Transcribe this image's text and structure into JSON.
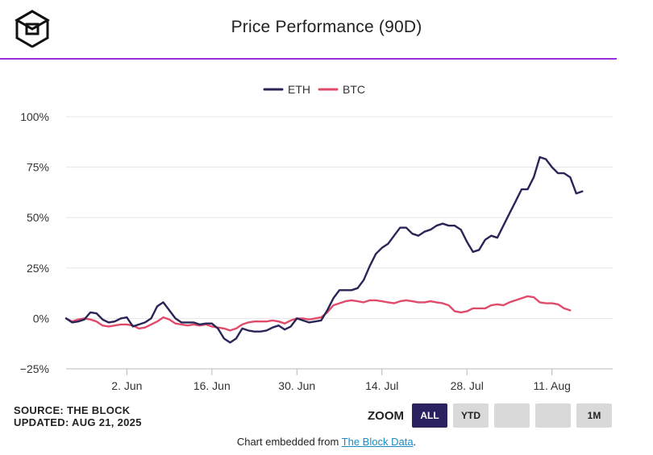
{
  "header": {
    "title": "Price Performance (90D)",
    "logo_icon": "the-block-cube-logo-icon"
  },
  "colors": {
    "eth": "#2a2557",
    "btc": "#e04a6b",
    "accent": "#9b30d9",
    "active": "#2a2160"
  },
  "chart_data": {
    "type": "line",
    "title": "Price Performance (90D)",
    "xlabel": "",
    "ylabel": "",
    "ylim": [
      -25,
      100
    ],
    "xlim": [
      0,
      90
    ],
    "grid": true,
    "legend_position": "top-center",
    "yticks": [
      -25,
      0,
      25,
      50,
      75,
      100
    ],
    "ytick_labels": [
      "−25%",
      "0%",
      "25%",
      "50%",
      "75%",
      "100%"
    ],
    "xticks": [
      {
        "day": 10,
        "label": "2. Jun"
      },
      {
        "day": 24,
        "label": "16. Jun"
      },
      {
        "day": 38,
        "label": "30. Jun"
      },
      {
        "day": 52,
        "label": "14. Jul"
      },
      {
        "day": 66,
        "label": "28. Jul"
      },
      {
        "day": 80,
        "label": "11. Aug"
      }
    ],
    "series": [
      {
        "name": "ETH",
        "x": [
          0,
          1,
          2,
          3,
          4,
          5,
          6,
          7,
          8,
          9,
          10,
          11,
          12,
          13,
          14,
          15,
          16,
          17,
          18,
          19,
          20,
          21,
          22,
          23,
          24,
          25,
          26,
          27,
          28,
          29,
          30,
          31,
          32,
          33,
          34,
          35,
          36,
          37,
          38,
          39,
          40,
          41,
          42,
          43,
          44,
          45,
          46,
          47,
          48,
          49,
          50,
          51,
          52,
          53,
          54,
          55,
          56,
          57,
          58,
          59,
          60,
          61,
          62,
          63,
          64,
          65,
          66,
          67,
          68,
          69,
          70,
          71,
          72,
          73,
          74,
          75,
          76,
          77,
          78,
          79,
          80,
          81,
          82,
          83,
          84,
          85,
          86,
          87,
          88,
          89,
          90
        ],
        "values": [
          0,
          -2,
          -1.5,
          -0.5,
          3,
          2.5,
          -0.5,
          -2,
          -1.5,
          0,
          0.5,
          -4,
          -3,
          -2,
          0,
          6,
          8,
          4,
          0,
          -2,
          -2,
          -2,
          -3,
          -2.5,
          -2.5,
          -5,
          -10,
          -12,
          -10,
          -5,
          -6,
          -6.5,
          -6.5,
          -6,
          -4.5,
          -3.5,
          -5.5,
          -4,
          0,
          -1,
          -2,
          -1.5,
          -1,
          4,
          10,
          14,
          14,
          14,
          15,
          19,
          26,
          32,
          35,
          37,
          41,
          45,
          45,
          42,
          41,
          43,
          44,
          46,
          47,
          46,
          46,
          44,
          38,
          33,
          34,
          39,
          41,
          40,
          46,
          52,
          58,
          64,
          64,
          70,
          80,
          79,
          75,
          72,
          72,
          70,
          62,
          63,
          null,
          null,
          null,
          null,
          null
        ]
      },
      {
        "name": "BTC",
        "x": [
          0,
          1,
          2,
          3,
          4,
          5,
          6,
          7,
          8,
          9,
          10,
          11,
          12,
          13,
          14,
          15,
          16,
          17,
          18,
          19,
          20,
          21,
          22,
          23,
          24,
          25,
          26,
          27,
          28,
          29,
          30,
          31,
          32,
          33,
          34,
          35,
          36,
          37,
          38,
          39,
          40,
          41,
          42,
          43,
          44,
          45,
          46,
          47,
          48,
          49,
          50,
          51,
          52,
          53,
          54,
          55,
          56,
          57,
          58,
          59,
          60,
          61,
          62,
          63,
          64,
          65,
          66,
          67,
          68,
          69,
          70,
          71,
          72,
          73,
          74,
          75,
          76,
          77,
          78,
          79,
          80,
          81,
          82,
          83,
          84,
          85,
          86,
          87,
          88,
          89,
          90
        ],
        "values": [
          0,
          -1.5,
          -0.5,
          0,
          -0.5,
          -1.5,
          -3.5,
          -4,
          -3.5,
          -3,
          -3,
          -3.5,
          -5,
          -4.5,
          -3,
          -1.5,
          0.5,
          -0.5,
          -2.5,
          -3,
          -3.5,
          -3,
          -3.5,
          -3,
          -4,
          -4.5,
          -5,
          -6,
          -5,
          -3,
          -2,
          -1.5,
          -1.5,
          -1.5,
          -1,
          -1.5,
          -2.5,
          -1,
          0,
          0,
          -0.5,
          0,
          0.5,
          3,
          6.5,
          7.5,
          8.5,
          9,
          8.5,
          8,
          9,
          9,
          8.5,
          8,
          7.5,
          8.5,
          9,
          8.5,
          8,
          8,
          8.5,
          8,
          7.5,
          6.5,
          3.5,
          3,
          3.5,
          5,
          5,
          5,
          6.5,
          7,
          6.5,
          8,
          9,
          10,
          11,
          10.5,
          8,
          7.5,
          7.5,
          7,
          5,
          4,
          null,
          null,
          null,
          null,
          null,
          null,
          null
        ]
      }
    ]
  },
  "footer": {
    "source_line": "SOURCE: THE BLOCK",
    "updated_line": "UPDATED: AUG 21, 2025",
    "zoom_label": "ZOOM",
    "zoom_buttons": [
      {
        "label": "ALL",
        "active": true
      },
      {
        "label": "YTD",
        "active": false
      },
      {
        "label": "",
        "active": false
      },
      {
        "label": "",
        "active": false
      },
      {
        "label": "1M",
        "active": false
      }
    ],
    "embed_prefix": "Chart embedded from ",
    "embed_link": "The Block Data",
    "embed_suffix": "."
  }
}
